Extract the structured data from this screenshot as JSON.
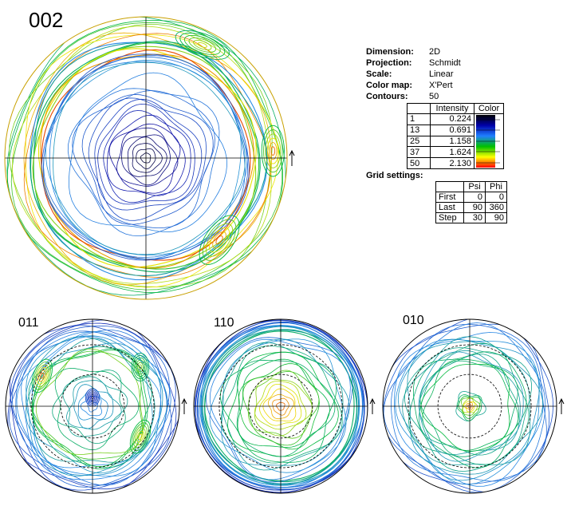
{
  "chart_data": [
    {
      "type": "pole_figure",
      "title": "002",
      "peak_region": "center + outer ring"
    },
    {
      "type": "pole_figure",
      "title": "011",
      "peak_region": "ring"
    },
    {
      "type": "pole_figure",
      "title": "110",
      "peak_region": "center"
    },
    {
      "type": "pole_figure",
      "title": "010",
      "peak_region": "center"
    }
  ],
  "info": {
    "rows": [
      {
        "key": "Dimension:",
        "value": "2D"
      },
      {
        "key": "Projection:",
        "value": "Schmidt"
      },
      {
        "key": "Scale:",
        "value": "Linear"
      },
      {
        "key": "Color map:",
        "value": "X'Pert"
      },
      {
        "key": "Contours:",
        "value": "50"
      }
    ]
  },
  "colormap_table": {
    "headers": [
      "",
      "Intensity",
      "Color"
    ],
    "rows": [
      {
        "level": "1",
        "intensity": "0.224"
      },
      {
        "level": "13",
        "intensity": "0.691"
      },
      {
        "level": "25",
        "intensity": "1.158"
      },
      {
        "level": "37",
        "intensity": "1.624"
      },
      {
        "level": "50",
        "intensity": "2.130"
      }
    ],
    "colors": [
      "#000000",
      "#0000aa",
      "#2080ff",
      "#00c000",
      "#ffff00",
      "#ff0000"
    ]
  },
  "grid_settings": {
    "title": "Grid settings:",
    "headers": [
      "",
      "Psi",
      "Phi"
    ],
    "rows": [
      {
        "label": "First",
        "psi": "0",
        "phi": "0"
      },
      {
        "label": "Last",
        "psi": "90",
        "phi": "360"
      },
      {
        "label": "Step",
        "psi": "30",
        "phi": "90"
      }
    ]
  }
}
